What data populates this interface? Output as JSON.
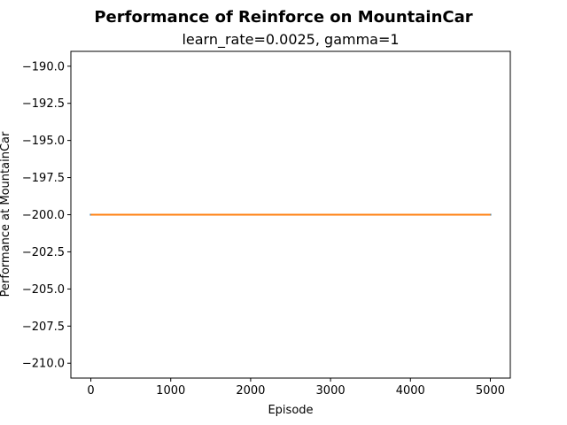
{
  "chart_data": {
    "type": "line",
    "title": "Performance of Reinforce on MountainCar",
    "subtitle": "learn_rate=0.0025, gamma=1",
    "xlabel": "Episode",
    "ylabel": "Performance at MountainCar",
    "xlim": [
      -250,
      5250
    ],
    "ylim": [
      -211,
      -189
    ],
    "xticks": [
      0,
      1000,
      2000,
      3000,
      4000,
      5000
    ],
    "yticks": [
      -190.0,
      -192.5,
      -195.0,
      -197.5,
      -200.0,
      -202.5,
      -205.0,
      -207.5,
      -210.0
    ],
    "xtick_labels": [
      "0",
      "1000",
      "2000",
      "3000",
      "4000",
      "5000"
    ],
    "ytick_labels": [
      "−190.0",
      "−192.5",
      "−195.0",
      "−197.5",
      "−200.0",
      "−202.5",
      "−205.0",
      "−207.5",
      "−210.0"
    ],
    "grid": false,
    "series": [
      {
        "color": "#1f77b4",
        "x": [
          0,
          5000
        ],
        "y": [
          -200,
          -200
        ]
      },
      {
        "color": "#ff7f0e",
        "x": [
          10,
          4990
        ],
        "y": [
          -200,
          -200
        ]
      }
    ]
  }
}
